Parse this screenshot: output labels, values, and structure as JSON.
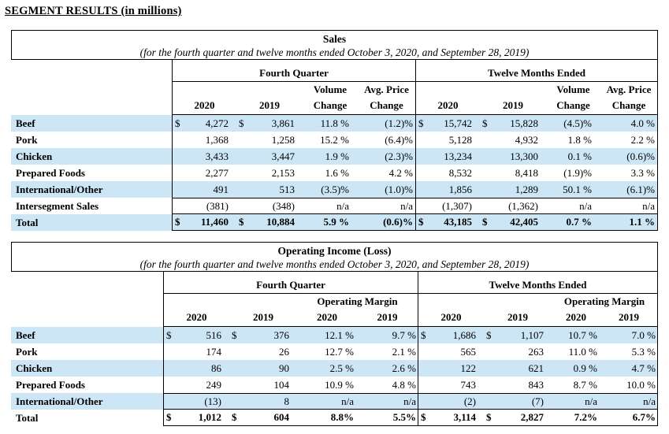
{
  "page_title": "SEGMENT RESULTS (in millions)",
  "colors": {
    "stripe": "#cce6f5",
    "border": "#000000"
  },
  "tables": [
    {
      "title": "Sales",
      "subtitle": "(for the fourth quarter and twelve months ended October 3, 2020, and September 28, 2019)",
      "sections": [
        {
          "label": "Fourth Quarter",
          "header_top": [
            {
              "text": "",
              "span": 4
            },
            {
              "text": "Volume",
              "span": 1
            },
            {
              "text": "Avg. Price",
              "span": 1
            }
          ],
          "header_cols": [
            {
              "text": "2020",
              "span": 2
            },
            {
              "text": "2019",
              "span": 2
            },
            {
              "text": "Change",
              "span": 1
            },
            {
              "text": "Change",
              "span": 1
            }
          ]
        },
        {
          "label": "Twelve Months Ended",
          "header_top": [
            {
              "text": "",
              "span": 4
            },
            {
              "text": "Volume",
              "span": 1
            },
            {
              "text": "Avg. Price",
              "span": 1
            }
          ],
          "header_cols": [
            {
              "text": "2020",
              "span": 2
            },
            {
              "text": "2019",
              "span": 2
            },
            {
              "text": "Change",
              "span": 1
            },
            {
              "text": "Change",
              "span": 1
            }
          ]
        }
      ],
      "rows": [
        {
          "label": "Beef",
          "stripe": true,
          "bold": false,
          "rule_top": false,
          "rule_bottom": false,
          "cells": [
            "$",
            "4,272",
            "$",
            "3,861",
            "11.8 %",
            "(1.2)%",
            "$",
            "15,742",
            "$",
            "15,828",
            "(4.5)%",
            "4.0 %"
          ]
        },
        {
          "label": "Pork",
          "stripe": false,
          "bold": false,
          "rule_top": false,
          "rule_bottom": false,
          "cells": [
            "",
            "1,368",
            "",
            "1,258",
            "15.2 %",
            "(6.4)%",
            "",
            "5,128",
            "",
            "4,932",
            "1.8 %",
            "2.2 %"
          ]
        },
        {
          "label": "Chicken",
          "stripe": true,
          "bold": false,
          "rule_top": false,
          "rule_bottom": false,
          "cells": [
            "",
            "3,433",
            "",
            "3,447",
            "1.9 %",
            "(2.3)%",
            "",
            "13,234",
            "",
            "13,300",
            "0.1 %",
            "(0.6)%"
          ]
        },
        {
          "label": "Prepared Foods",
          "stripe": false,
          "bold": false,
          "rule_top": false,
          "rule_bottom": false,
          "cells": [
            "",
            "2,277",
            "",
            "2,153",
            "1.6 %",
            "4.2 %",
            "",
            "8,532",
            "",
            "8,418",
            "(1.9)%",
            "3.3 %"
          ]
        },
        {
          "label": "International/Other",
          "stripe": true,
          "bold": false,
          "rule_top": false,
          "rule_bottom": false,
          "cells": [
            "",
            "491",
            "",
            "513",
            "(3.5)%",
            "(1.0)%",
            "",
            "1,856",
            "",
            "1,289",
            "50.1 %",
            "(6.1)%"
          ]
        },
        {
          "label": "Intersegment Sales",
          "stripe": false,
          "bold": false,
          "rule_top": true,
          "rule_bottom": true,
          "cells": [
            "",
            "(381)",
            "",
            "(348)",
            "n/a",
            "n/a",
            "",
            "(1,307)",
            "",
            "(1,362)",
            "n/a",
            "n/a"
          ]
        },
        {
          "label": "Total",
          "stripe": true,
          "bold": true,
          "rule_top": false,
          "rule_bottom": true,
          "cells": [
            "$",
            "11,460",
            "$",
            "10,884",
            "5.9 %",
            "(0.6)%",
            "$",
            "43,185",
            "$",
            "42,405",
            "0.7 %",
            "1.1 %"
          ]
        }
      ]
    },
    {
      "title": "Operating Income (Loss)",
      "subtitle": "(for the fourth quarter and twelve months ended October 3, 2020, and September 28, 2019)",
      "sections": [
        {
          "label": "Fourth Quarter",
          "header_top": [
            {
              "text": "",
              "span": 4
            },
            {
              "text": "Operating Margin",
              "span": 2
            }
          ],
          "header_cols": [
            {
              "text": "2020",
              "span": 2
            },
            {
              "text": "2019",
              "span": 2
            },
            {
              "text": "2020",
              "span": 1
            },
            {
              "text": "2019",
              "span": 1
            }
          ]
        },
        {
          "label": "Twelve Months Ended",
          "header_top": [
            {
              "text": "",
              "span": 4
            },
            {
              "text": "Operating Margin",
              "span": 2
            }
          ],
          "header_cols": [
            {
              "text": "2020",
              "span": 2
            },
            {
              "text": "2019",
              "span": 2
            },
            {
              "text": "2020",
              "span": 1
            },
            {
              "text": "2019",
              "span": 1
            }
          ]
        }
      ],
      "rows": [
        {
          "label": "Beef",
          "stripe": true,
          "bold": false,
          "rule_top": false,
          "rule_bottom": false,
          "cells": [
            "$",
            "516",
            "$",
            "376",
            "12.1 %",
            "9.7 %",
            "$",
            "1,686",
            "$",
            "1,107",
            "10.7 %",
            "7.0 %"
          ]
        },
        {
          "label": "Pork",
          "stripe": false,
          "bold": false,
          "rule_top": false,
          "rule_bottom": false,
          "cells": [
            "",
            "174",
            "",
            "26",
            "12.7 %",
            "2.1 %",
            "",
            "565",
            "",
            "263",
            "11.0 %",
            "5.3 %"
          ]
        },
        {
          "label": "Chicken",
          "stripe": true,
          "bold": false,
          "rule_top": false,
          "rule_bottom": false,
          "cells": [
            "",
            "86",
            "",
            "90",
            "2.5 %",
            "2.6 %",
            "",
            "122",
            "",
            "621",
            "0.9 %",
            "4.7 %"
          ]
        },
        {
          "label": "Prepared Foods",
          "stripe": false,
          "bold": false,
          "rule_top": false,
          "rule_bottom": false,
          "cells": [
            "",
            "249",
            "",
            "104",
            "10.9 %",
            "4.8 %",
            "",
            "743",
            "",
            "843",
            "8.7 %",
            "10.0 %"
          ]
        },
        {
          "label": "International/Other",
          "stripe": true,
          "bold": false,
          "rule_top": true,
          "rule_bottom": true,
          "cells": [
            "",
            "(13)",
            "",
            "8",
            "n/a",
            "n/a",
            "",
            "(2)",
            "",
            "(7)",
            "n/a",
            "n/a"
          ]
        },
        {
          "label": "Total",
          "stripe": false,
          "bold": true,
          "rule_top": false,
          "rule_bottom": true,
          "cells": [
            "$",
            "1,012",
            "$",
            "604",
            "8.8%",
            "5.5%",
            "$",
            "3,114",
            "$",
            "2,827",
            "7.2%",
            "6.7%"
          ]
        }
      ]
    }
  ]
}
